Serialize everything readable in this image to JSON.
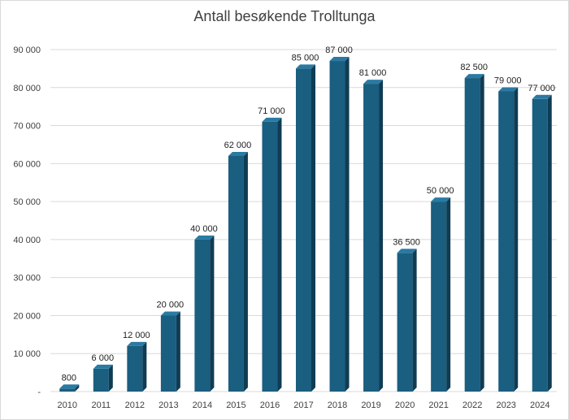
{
  "chart_data": {
    "type": "bar",
    "title": "Antall besøkende Trolltunga",
    "categories": [
      "2010",
      "2011",
      "2012",
      "2013",
      "2014",
      "2015",
      "2016",
      "2017",
      "2018",
      "2019",
      "2020",
      "2021",
      "2022",
      "2023",
      "2024"
    ],
    "values": [
      800,
      6000,
      12000,
      20000,
      40000,
      62000,
      71000,
      85000,
      87000,
      81000,
      36500,
      50000,
      82500,
      79000,
      77000
    ],
    "data_labels": [
      "800",
      "6 000",
      "12 000",
      "20 000",
      "40 000",
      "62 000",
      "71 000",
      "85 000",
      "87 000",
      "81 000",
      "36 500",
      "50 000",
      "82 500",
      "79 000",
      "77 000"
    ],
    "ylim": [
      0,
      90000
    ],
    "y_ticks": [
      0,
      10000,
      20000,
      30000,
      40000,
      50000,
      60000,
      70000,
      80000,
      90000
    ],
    "y_tick_labels": [
      "-",
      "10 000",
      "20 000",
      "30 000",
      "40 000",
      "50 000",
      "60 000",
      "70 000",
      "80 000",
      "90 000"
    ],
    "xlabel": "",
    "ylabel": "",
    "grid": true,
    "legend": "none",
    "colors": {
      "bar_front": "#1a5e80",
      "bar_side": "#0f3c54",
      "bar_top": "#2a7aa3",
      "grid": "#d9d9d9",
      "text": "#404040"
    }
  }
}
